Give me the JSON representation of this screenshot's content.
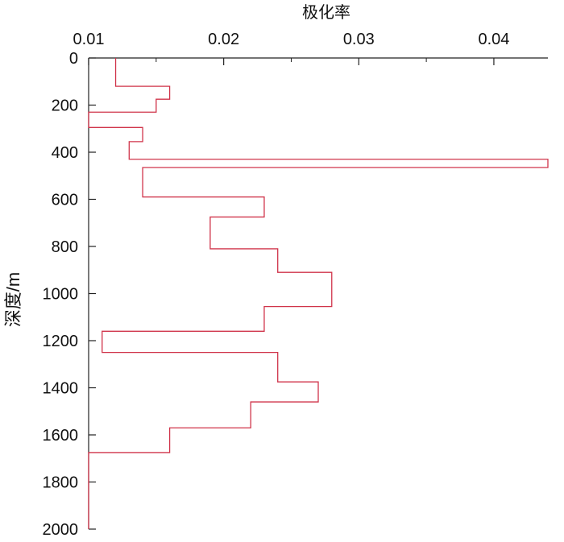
{
  "chart_data": {
    "type": "line",
    "title": "",
    "xlabel": "极化率",
    "ylabel": "深度/m",
    "xlim": [
      0.01,
      0.044
    ],
    "ylim": [
      0,
      2000
    ],
    "y_inverted": true,
    "x_axis_position": "top",
    "x_ticks": [
      0.01,
      0.02,
      0.03,
      0.04
    ],
    "x_tick_labels": [
      "0.01",
      "0.02",
      "0.03",
      "0.04"
    ],
    "x_minor_ticks": [
      0.015,
      0.025,
      0.035
    ],
    "y_ticks": [
      0,
      200,
      400,
      600,
      800,
      1000,
      1200,
      1400,
      1600,
      1800,
      2000
    ],
    "y_tick_labels": [
      "0",
      "200",
      "400",
      "600",
      "800",
      "1000",
      "1200",
      "1400",
      "1600",
      "1800",
      "2000"
    ],
    "grid": false,
    "line_color": "#d0344a",
    "series": [
      {
        "segments": [
          {
            "top": 0,
            "bottom": 120,
            "value": 0.012
          },
          {
            "top": 120,
            "bottom": 175,
            "value": 0.016
          },
          {
            "top": 175,
            "bottom": 230,
            "value": 0.015
          },
          {
            "top": 230,
            "bottom": 295,
            "value": 0.01
          },
          {
            "top": 295,
            "bottom": 355,
            "value": 0.014
          },
          {
            "top": 355,
            "bottom": 430,
            "value": 0.013
          },
          {
            "top": 430,
            "bottom": 465,
            "value": 0.044
          },
          {
            "top": 465,
            "bottom": 590,
            "value": 0.014
          },
          {
            "top": 590,
            "bottom": 675,
            "value": 0.023
          },
          {
            "top": 675,
            "bottom": 810,
            "value": 0.019
          },
          {
            "top": 810,
            "bottom": 910,
            "value": 0.024
          },
          {
            "top": 910,
            "bottom": 1055,
            "value": 0.028
          },
          {
            "top": 1055,
            "bottom": 1160,
            "value": 0.023
          },
          {
            "top": 1160,
            "bottom": 1250,
            "value": 0.011
          },
          {
            "top": 1250,
            "bottom": 1375,
            "value": 0.024
          },
          {
            "top": 1375,
            "bottom": 1460,
            "value": 0.027
          },
          {
            "top": 1460,
            "bottom": 1570,
            "value": 0.022
          },
          {
            "top": 1570,
            "bottom": 1675,
            "value": 0.016
          },
          {
            "top": 1675,
            "bottom": 2000,
            "value": 0.01
          }
        ]
      }
    ]
  }
}
